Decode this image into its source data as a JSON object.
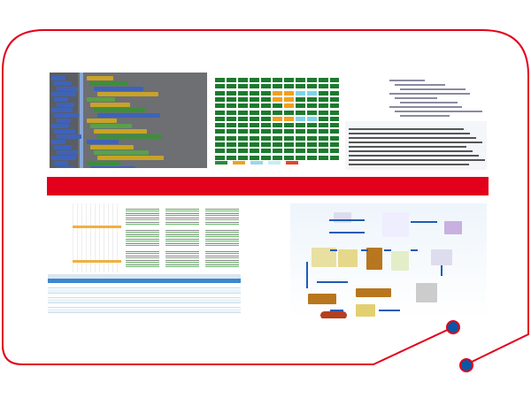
{
  "colors": {
    "frame": "#e2001a",
    "band": "#e2001a",
    "dot": "#0b57a4",
    "grid_green": "#1c7a2e",
    "grid_orange": "#f0a020",
    "grid_cyan": "#7fd3e6",
    "flow_arrow": "#1f5bb5",
    "flow_box": "#b8761e"
  }
}
